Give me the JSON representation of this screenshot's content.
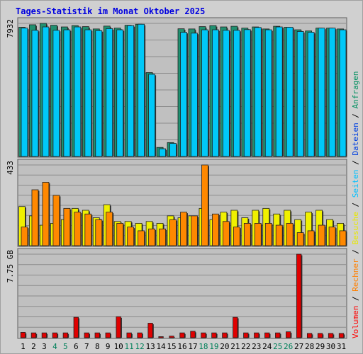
{
  "chart_data": {
    "type": "bar",
    "title": "Tages-Statistik im Monat Oktober 2025",
    "categories": [
      "1",
      "2",
      "3",
      "4",
      "5",
      "6",
      "7",
      "8",
      "9",
      "10",
      "11",
      "12",
      "13",
      "14",
      "15",
      "16",
      "17",
      "18",
      "19",
      "20",
      "21",
      "22",
      "23",
      "24",
      "25",
      "26",
      "27",
      "28",
      "29",
      "30",
      "31"
    ],
    "weekend_days": [
      "4",
      "5",
      "11",
      "12",
      "18",
      "19",
      "25",
      "26"
    ],
    "legend": [
      {
        "key": "anfragen",
        "label": "Anfragen",
        "color": "#009060"
      },
      {
        "key": "dateien",
        "label": "Dateien",
        "color": "#0040e0"
      },
      {
        "key": "seiten",
        "label": "Seiten",
        "color": "#00c0ff"
      },
      {
        "key": "besuche",
        "label": "Besuche",
        "color": "#e8e800"
      },
      {
        "key": "rechner",
        "label": "Rechner",
        "color": "#ff8000"
      },
      {
        "key": "volumen",
        "label": "Volumen",
        "color": "#ff0000"
      }
    ],
    "separator": "/",
    "panels": [
      {
        "name": "hits",
        "max_label": "7932",
        "ylim": [
          0,
          7932
        ],
        "series": [
          {
            "key": "anfragen",
            "color": "#209070",
            "values": [
              7700,
              7850,
              7932,
              7820,
              7720,
              7800,
              7740,
              7600,
              7770,
              7650,
              7820,
              7880,
              5000,
              540,
              830,
              7610,
              7600,
              7740,
              7800,
              7720,
              7760,
              7650,
              7720,
              7600,
              7760,
              7700,
              7550,
              7480,
              7650,
              7650,
              7600
            ]
          },
          {
            "key": "seiten",
            "color": "#00c8f8",
            "values": [
              7650,
              7520,
              7720,
              7520,
              7550,
              7720,
              7550,
              7500,
              7620,
              7550,
              7800,
              7880,
              4900,
              460,
              780,
              7400,
              7350,
              7550,
              7550,
              7520,
              7520,
              7560,
              7690,
              7550,
              7720,
              7700,
              7450,
              7400,
              7650,
              7650,
              7550
            ]
          }
        ]
      },
      {
        "name": "visits",
        "max_label": "433",
        "ylim": [
          0,
          433
        ],
        "series": [
          {
            "key": "besuche",
            "color": "#f0f000",
            "values": [
              210,
              160,
              110,
              120,
              140,
              200,
              190,
              150,
              220,
              130,
              130,
              120,
              130,
              120,
              160,
              150,
              160,
              200,
              140,
              180,
              190,
              150,
              190,
              200,
              170,
              190,
              140,
              180,
              190,
              140,
              120
            ]
          },
          {
            "key": "rechner",
            "color": "#ff8800",
            "values": [
              100,
              300,
              340,
              270,
              200,
              180,
              170,
              140,
              180,
              120,
              100,
              80,
              90,
              90,
              140,
              180,
              160,
              433,
              170,
              130,
              100,
              120,
              120,
              120,
              110,
              120,
              70,
              80,
              110,
              100,
              80
            ]
          }
        ]
      },
      {
        "name": "volume",
        "max_label": "7.75 GB",
        "ylim": [
          0,
          7.75
        ],
        "series": [
          {
            "key": "volumen",
            "color": "#e00000",
            "values": [
              0.5,
              0.45,
              0.45,
              0.45,
              0.45,
              1.9,
              0.45,
              0.45,
              0.45,
              1.95,
              0.45,
              0.45,
              1.35,
              0.1,
              0.15,
              0.45,
              0.6,
              0.45,
              0.45,
              0.45,
              1.9,
              0.45,
              0.45,
              0.45,
              0.45,
              0.55,
              7.75,
              0.4,
              0.4,
              0.4,
              0.4
            ]
          }
        ]
      }
    ]
  },
  "colors": {
    "frame_bg": "#d0d0d0",
    "plot_bg": "#c0c0c0",
    "grid": "#8c8c8c",
    "title": "#0000e0",
    "weekend": "#00805a",
    "weekday": "#000000"
  }
}
